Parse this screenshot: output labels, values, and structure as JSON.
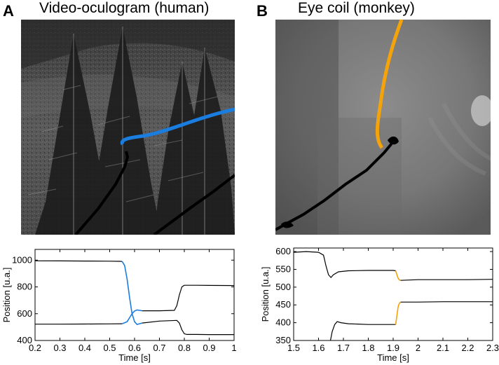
{
  "panels": [
    {
      "letter": "A",
      "title": "Video-oculogram (human)"
    },
    {
      "letter": "B",
      "title": "Eye coil (monkey)"
    }
  ],
  "colors": {
    "blue": "#1a7de0",
    "orange": "#f5a30a",
    "black": "#000000"
  },
  "chart_data": [
    {
      "type": "line",
      "xlabel": "Time [s]",
      "ylabel": "Position [u.a.]",
      "xlim": [
        0.2,
        1.0
      ],
      "ylim": [
        400,
        1080
      ],
      "xticks": [
        0.2,
        0.3,
        0.4,
        0.5,
        0.6,
        0.7,
        0.8,
        0.9,
        1
      ],
      "yticks": [
        400,
        600,
        800,
        1000
      ],
      "grid": false,
      "series": [
        {
          "color": "#000000",
          "x": [
            0.2,
            0.3,
            0.4,
            0.5,
            0.54,
            0.55
          ],
          "y": [
            995,
            994,
            993,
            992,
            991,
            990
          ]
        },
        {
          "color": "#1a7de0",
          "x": [
            0.55,
            0.56,
            0.57,
            0.58,
            0.59,
            0.6,
            0.61,
            0.62,
            0.63
          ],
          "y": [
            990,
            960,
            860,
            720,
            600,
            540,
            520,
            525,
            530
          ]
        },
        {
          "color": "#000000",
          "x": [
            0.63,
            0.7,
            0.77,
            0.78,
            0.79,
            0.8,
            0.81,
            0.85,
            0.9,
            1.0
          ],
          "y": [
            530,
            545,
            550,
            530,
            480,
            450,
            445,
            445,
            444,
            444
          ]
        },
        {
          "color": "#000000",
          "x": [
            0.2,
            0.3,
            0.4,
            0.5,
            0.55
          ],
          "y": [
            522,
            522,
            523,
            524,
            525
          ]
        },
        {
          "color": "#1a7de0",
          "x": [
            0.55,
            0.57,
            0.58,
            0.59,
            0.6,
            0.61,
            0.62,
            0.63
          ],
          "y": [
            525,
            540,
            570,
            600,
            620,
            628,
            625,
            622
          ]
        },
        {
          "color": "#000000",
          "x": [
            0.63,
            0.7,
            0.76,
            0.77,
            0.78,
            0.79,
            0.8,
            0.85,
            0.9,
            1.0
          ],
          "y": [
            622,
            622,
            625,
            660,
            740,
            800,
            812,
            812,
            811,
            810
          ]
        }
      ]
    },
    {
      "type": "line",
      "xlabel": "Time [s]",
      "ylabel": "Position [u.a.]",
      "xlim": [
        1.5,
        2.3
      ],
      "ylim": [
        350,
        610
      ],
      "xticks": [
        1.5,
        1.6,
        1.7,
        1.8,
        1.9,
        2,
        2.1,
        2.2,
        2.3
      ],
      "yticks": [
        350,
        400,
        450,
        500,
        550,
        600
      ],
      "grid": false,
      "series": [
        {
          "color": "#000000",
          "x": [
            1.5,
            1.55,
            1.6,
            1.62,
            1.63,
            1.64,
            1.65,
            1.66,
            1.68,
            1.72,
            1.8,
            1.9,
            1.91
          ],
          "y": [
            598,
            600,
            598,
            590,
            560,
            535,
            527,
            535,
            543,
            546,
            547,
            547,
            546
          ]
        },
        {
          "color": "#f5a30a",
          "x": [
            1.91,
            1.915,
            1.92,
            1.925,
            1.93
          ],
          "y": [
            546,
            535,
            525,
            520,
            519
          ]
        },
        {
          "color": "#000000",
          "x": [
            1.93,
            2.0,
            2.1,
            2.2,
            2.3
          ],
          "y": [
            519,
            521,
            521,
            521,
            522
          ]
        },
        {
          "color": "#000000",
          "x": [
            1.648,
            1.655,
            1.665,
            1.675,
            1.69,
            1.72,
            1.8,
            1.9,
            1.91
          ],
          "y": [
            350,
            375,
            395,
            403,
            400,
            397,
            395,
            395,
            395
          ]
        },
        {
          "color": "#f5a30a",
          "x": [
            1.91,
            1.915,
            1.92,
            1.925,
            1.93
          ],
          "y": [
            395,
            420,
            445,
            455,
            458
          ]
        },
        {
          "color": "#000000",
          "x": [
            1.93,
            2.0,
            2.1,
            2.2,
            2.3
          ],
          "y": [
            458,
            458,
            459,
            459,
            459
          ]
        }
      ]
    }
  ]
}
